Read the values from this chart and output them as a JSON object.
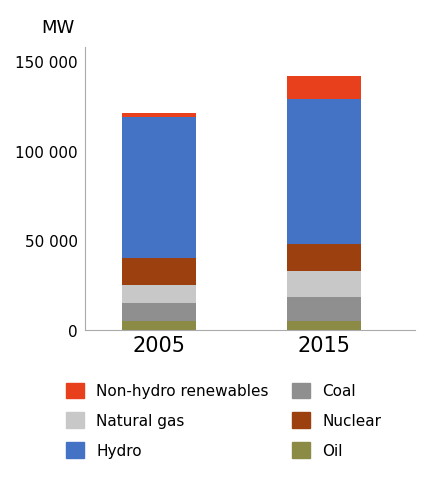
{
  "years": [
    "2005",
    "2015"
  ],
  "segments": [
    {
      "label": "Oil",
      "color": "#8b8b45",
      "values": [
        5000,
        5000
      ]
    },
    {
      "label": "Coal",
      "color": "#8f8f8f",
      "values": [
        10000,
        13000
      ]
    },
    {
      "label": "Natural gas",
      "color": "#c8c8c8",
      "values": [
        10000,
        15000
      ]
    },
    {
      "label": "Nuclear",
      "color": "#9c4010",
      "values": [
        15000,
        15000
      ]
    },
    {
      "label": "Hydro",
      "color": "#4472c4",
      "values": [
        79000,
        81000
      ]
    },
    {
      "label": "Non-hydro renewables",
      "color": "#e8401c",
      "values": [
        2000,
        13000
      ]
    }
  ],
  "ylabel": "MW",
  "ylim": [
    0,
    158000
  ],
  "yticks": [
    0,
    50000,
    100000,
    150000
  ],
  "ytick_labels": [
    "0",
    "50 000",
    "100 000",
    "150 000"
  ],
  "x_positions": [
    1,
    2
  ],
  "x_labels": [
    "2005",
    "2015"
  ],
  "bar_width": 0.45,
  "background_color": "#ffffff",
  "legend_order": [
    "Non-hydro renewables",
    "Natural gas",
    "Hydro",
    "Coal",
    "Nuclear",
    "Oil"
  ]
}
